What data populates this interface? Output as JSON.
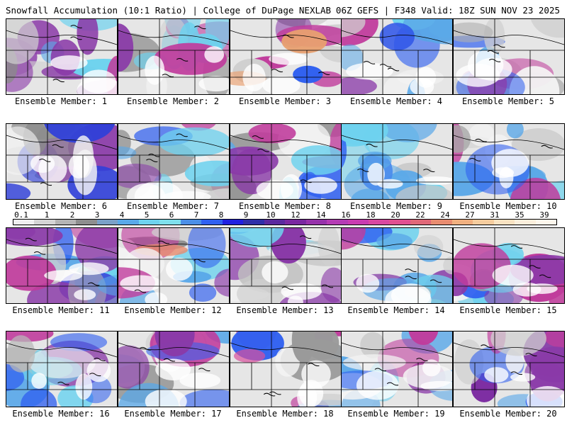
{
  "header": {
    "title_left": "Snowfall Accumulation (10:1 Ratio) | College of DuPage NEXLAB",
    "title_right": "06Z GEFS | F348 Valid: 18Z SUN NOV 23 2025"
  },
  "colorbar": {
    "labels": [
      "0.1",
      "1",
      "2",
      "3",
      "4",
      "5",
      "6",
      "7",
      "8",
      "9",
      "10",
      "12",
      "14",
      "16",
      "18",
      "20",
      "22",
      "24",
      "27",
      "31",
      "35",
      "39"
    ],
    "colors": [
      "#f0f0f0",
      "#d4d4d4",
      "#b4b4b4",
      "#8e8e8e",
      "#7aa0c8",
      "#5aa8e8",
      "#6ed2ee",
      "#7fe0ec",
      "#4b8fe6",
      "#3060f0",
      "#2020e0",
      "#3030a8",
      "#5a2a9e",
      "#7a28a0",
      "#9632aa",
      "#b43cb4",
      "#c83cb0",
      "#d848a0",
      "#e05090",
      "#e06878",
      "#e88c70",
      "#f0b080",
      "#f5cc9e",
      "#f9e2c2",
      "#fbeedc",
      "#fdf6ec"
    ]
  },
  "members": [
    {
      "label": "Ensemble Member: 1",
      "main_fill": "#8a8a8a",
      "accent_fill": "#8a3aa8"
    },
    {
      "label": "Ensemble Member: 2",
      "main_fill": "#a0a0a0",
      "accent_fill": "#c03c9c"
    },
    {
      "label": "Ensemble Member: 3",
      "main_fill": "#7a7a7a",
      "accent_fill": "#e8a070"
    },
    {
      "label": "Ensemble Member: 4",
      "main_fill": "#9a9a9a",
      "accent_fill": "#3056e8"
    },
    {
      "label": "Ensemble Member: 5",
      "main_fill": "#b0b0b0",
      "accent_fill": "#6ed2ee"
    },
    {
      "label": "Ensemble Member: 6",
      "main_fill": "#8c8c8c",
      "accent_fill": "#3040d8"
    },
    {
      "label": "Ensemble Member: 7",
      "main_fill": "#9c9c9c",
      "accent_fill": "#c03c9c"
    },
    {
      "label": "Ensemble Member: 8",
      "main_fill": "#7c7c7c",
      "accent_fill": "#d8509c"
    },
    {
      "label": "Ensemble Member: 9",
      "main_fill": "#c8c8c8",
      "accent_fill": "#8a3aa8"
    },
    {
      "label": "Ensemble Member: 10",
      "main_fill": "#a8a8a8",
      "accent_fill": "#5aa8e8"
    },
    {
      "label": "Ensemble Member: 11",
      "main_fill": "#b4b4b4",
      "accent_fill": "#3030d8"
    },
    {
      "label": "Ensemble Member: 12",
      "main_fill": "#8a8a8a",
      "accent_fill": "#e88c70"
    },
    {
      "label": "Ensemble Member: 13",
      "main_fill": "#c0c0c0",
      "accent_fill": "#8a3aa8"
    },
    {
      "label": "Ensemble Member: 14",
      "main_fill": "#b8b8b8",
      "accent_fill": "#7a28a0"
    },
    {
      "label": "Ensemble Member: 15",
      "main_fill": "#a0a0a0",
      "accent_fill": "#c03c9c"
    },
    {
      "label": "Ensemble Member: 16",
      "main_fill": "#b8b8b8",
      "accent_fill": "#3060f0"
    },
    {
      "label": "Ensemble Member: 17",
      "main_fill": "#8a8a8a",
      "accent_fill": "#8a3aa8"
    },
    {
      "label": "Ensemble Member: 18",
      "main_fill": "#9a9a9a",
      "accent_fill": "#d8509c"
    },
    {
      "label": "Ensemble Member: 19",
      "main_fill": "#c4c4c4",
      "accent_fill": "#c03c9c"
    },
    {
      "label": "Ensemble Member: 20",
      "main_fill": "#b0b0b0",
      "accent_fill": "#7a28a0"
    }
  ]
}
